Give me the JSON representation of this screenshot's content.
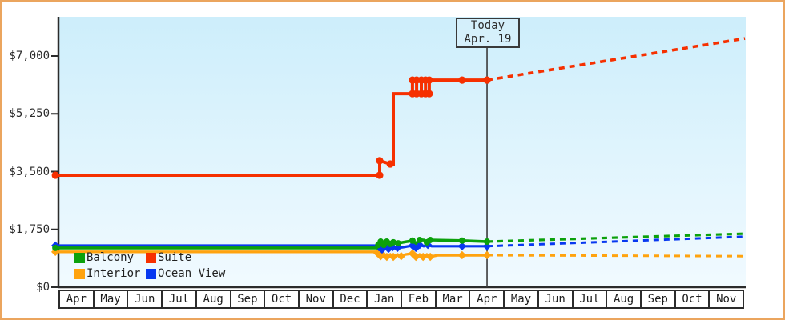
{
  "window": {
    "border_color": "#eba55e",
    "background": "#ffffff"
  },
  "today": {
    "line1": "Today",
    "line2": "Apr. 19"
  },
  "legend": [
    {
      "label": "Balcony",
      "color": "#0ca10c"
    },
    {
      "label": "Suite",
      "color": "#f63000"
    },
    {
      "label": "Interior",
      "color": "#ffa30f"
    },
    {
      "label": "Ocean View",
      "color": "#0838f0"
    }
  ],
  "colors": {
    "axis": "#2b2b2b",
    "plot_bg_top": "#cdeefb",
    "plot_bg_bottom": "#f1faff",
    "today_line": "#3a3a3a"
  },
  "chart_data": {
    "type": "line",
    "title": "",
    "x_categories": [
      "Apr",
      "May",
      "Jun",
      "Jul",
      "Aug",
      "Sep",
      "Oct",
      "Nov",
      "Dec",
      "Jan",
      "Feb",
      "Mar",
      "Apr",
      "May",
      "Jun",
      "Jul",
      "Aug",
      "Sep",
      "Oct",
      "Nov"
    ],
    "x_unit": "month",
    "ylim": [
      0,
      8175
    ],
    "y_ticks": [
      0,
      1750,
      3500,
      5250,
      7000
    ],
    "y_tick_labels": [
      "$0",
      "$1,750",
      "$3,500",
      "$5,250",
      "$7,000"
    ],
    "today_marker": {
      "x": 12.53,
      "label": "Today Apr. 19"
    },
    "legend_position": "bottom-left inside plot",
    "grid": false,
    "series": [
      {
        "name": "Interior",
        "color": "#ffa30f",
        "marker": "diamond",
        "line_width": 3.4,
        "history": [
          [
            -0.09,
            1070
          ],
          [
            9.25,
            1070
          ],
          [
            9.32,
            1040
          ],
          [
            9.42,
            940
          ],
          [
            9.51,
            1020
          ],
          [
            9.6,
            920
          ],
          [
            9.7,
            990
          ],
          [
            9.79,
            920
          ],
          [
            9.91,
            990
          ],
          [
            10.02,
            940
          ],
          [
            10.14,
            990
          ],
          [
            10.35,
            1020
          ],
          [
            10.45,
            920
          ],
          [
            10.56,
            990
          ],
          [
            10.66,
            920
          ],
          [
            10.77,
            990
          ],
          [
            10.87,
            920
          ],
          [
            11.1,
            970
          ],
          [
            11.8,
            970
          ],
          [
            12.53,
            970
          ]
        ],
        "forecast": [
          [
            12.53,
            970
          ],
          [
            20.07,
            940
          ]
        ],
        "dots": [
          [
            -0.09,
            1070
          ],
          [
            9.32,
            1040
          ],
          [
            9.42,
            940
          ],
          [
            9.6,
            920
          ],
          [
            9.79,
            920
          ],
          [
            10.02,
            940
          ],
          [
            10.35,
            1020
          ],
          [
            10.45,
            920
          ],
          [
            10.66,
            920
          ],
          [
            10.87,
            920
          ],
          [
            11.8,
            970
          ],
          [
            12.53,
            970
          ]
        ]
      },
      {
        "name": "Ocean View",
        "color": "#0838f0",
        "marker": "diamond",
        "line_width": 3.2,
        "history": [
          [
            -0.09,
            1260
          ],
          [
            9.3,
            1260
          ],
          [
            9.37,
            1210
          ],
          [
            9.46,
            1140
          ],
          [
            9.56,
            1240
          ],
          [
            9.65,
            1160
          ],
          [
            9.77,
            1210
          ],
          [
            9.91,
            1190
          ],
          [
            10.07,
            1210
          ],
          [
            10.35,
            1260
          ],
          [
            10.45,
            1190
          ],
          [
            10.56,
            1280
          ],
          [
            10.68,
            1240
          ],
          [
            10.8,
            1280
          ],
          [
            10.91,
            1240
          ],
          [
            11.8,
            1240
          ],
          [
            12.53,
            1240
          ]
        ],
        "forecast": [
          [
            12.53,
            1240
          ],
          [
            20.07,
            1530
          ]
        ],
        "dots": [
          [
            -0.09,
            1260
          ],
          [
            9.37,
            1210
          ],
          [
            9.46,
            1140
          ],
          [
            9.56,
            1240
          ],
          [
            9.65,
            1160
          ],
          [
            9.77,
            1210
          ],
          [
            9.91,
            1190
          ],
          [
            10.35,
            1260
          ],
          [
            10.45,
            1190
          ],
          [
            10.56,
            1280
          ],
          [
            10.8,
            1280
          ],
          [
            11.8,
            1240
          ],
          [
            12.53,
            1240
          ]
        ]
      },
      {
        "name": "Balcony",
        "color": "#0ca10c",
        "marker": "circle",
        "line_width": 3.6,
        "history": [
          [
            -0.09,
            1190
          ],
          [
            9.3,
            1190
          ],
          [
            9.35,
            1280
          ],
          [
            9.42,
            1380
          ],
          [
            9.51,
            1280
          ],
          [
            9.6,
            1380
          ],
          [
            9.7,
            1310
          ],
          [
            9.79,
            1360
          ],
          [
            9.93,
            1330
          ],
          [
            10.07,
            1360
          ],
          [
            10.35,
            1410
          ],
          [
            10.45,
            1330
          ],
          [
            10.56,
            1430
          ],
          [
            10.68,
            1430
          ],
          [
            10.77,
            1360
          ],
          [
            10.87,
            1430
          ],
          [
            11.8,
            1410
          ],
          [
            12.53,
            1380
          ]
        ],
        "forecast": [
          [
            12.53,
            1380
          ],
          [
            20.07,
            1620
          ]
        ],
        "dots": [
          [
            -0.09,
            1190
          ],
          [
            9.35,
            1280
          ],
          [
            9.42,
            1380
          ],
          [
            9.51,
            1280
          ],
          [
            9.6,
            1380
          ],
          [
            9.7,
            1310
          ],
          [
            9.79,
            1360
          ],
          [
            9.93,
            1330
          ],
          [
            10.35,
            1410
          ],
          [
            10.56,
            1430
          ],
          [
            10.77,
            1360
          ],
          [
            10.87,
            1430
          ],
          [
            11.8,
            1410
          ],
          [
            12.53,
            1380
          ]
        ]
      },
      {
        "name": "Suite",
        "color": "#f63000",
        "marker": "circle",
        "line_width": 4,
        "history": [
          [
            -0.09,
            3390
          ],
          [
            9.39,
            3390
          ],
          [
            9.39,
            3830
          ],
          [
            9.7,
            3730
          ],
          [
            9.79,
            3730
          ],
          [
            9.79,
            5860
          ],
          [
            10.35,
            5860
          ],
          [
            10.35,
            6270
          ],
          [
            10.47,
            6270
          ],
          [
            10.47,
            5860
          ],
          [
            10.61,
            5860
          ],
          [
            10.61,
            6270
          ],
          [
            10.73,
            6270
          ],
          [
            10.73,
            5860
          ],
          [
            10.84,
            5860
          ],
          [
            10.84,
            6270
          ],
          [
            11.8,
            6270
          ],
          [
            12.53,
            6270
          ]
        ],
        "forecast": [
          [
            12.53,
            6270
          ],
          [
            20.07,
            7530
          ]
        ],
        "dots": [
          [
            -0.09,
            3390
          ],
          [
            9.39,
            3390
          ],
          [
            9.39,
            3830
          ],
          [
            9.7,
            3730
          ],
          [
            10.35,
            5860
          ],
          [
            10.35,
            6270
          ],
          [
            10.47,
            6270
          ],
          [
            10.47,
            5860
          ],
          [
            10.61,
            5860
          ],
          [
            10.61,
            6270
          ],
          [
            10.73,
            6270
          ],
          [
            10.73,
            5860
          ],
          [
            10.84,
            5860
          ],
          [
            10.84,
            6270
          ],
          [
            11.8,
            6270
          ],
          [
            12.53,
            6270
          ]
        ]
      }
    ]
  }
}
